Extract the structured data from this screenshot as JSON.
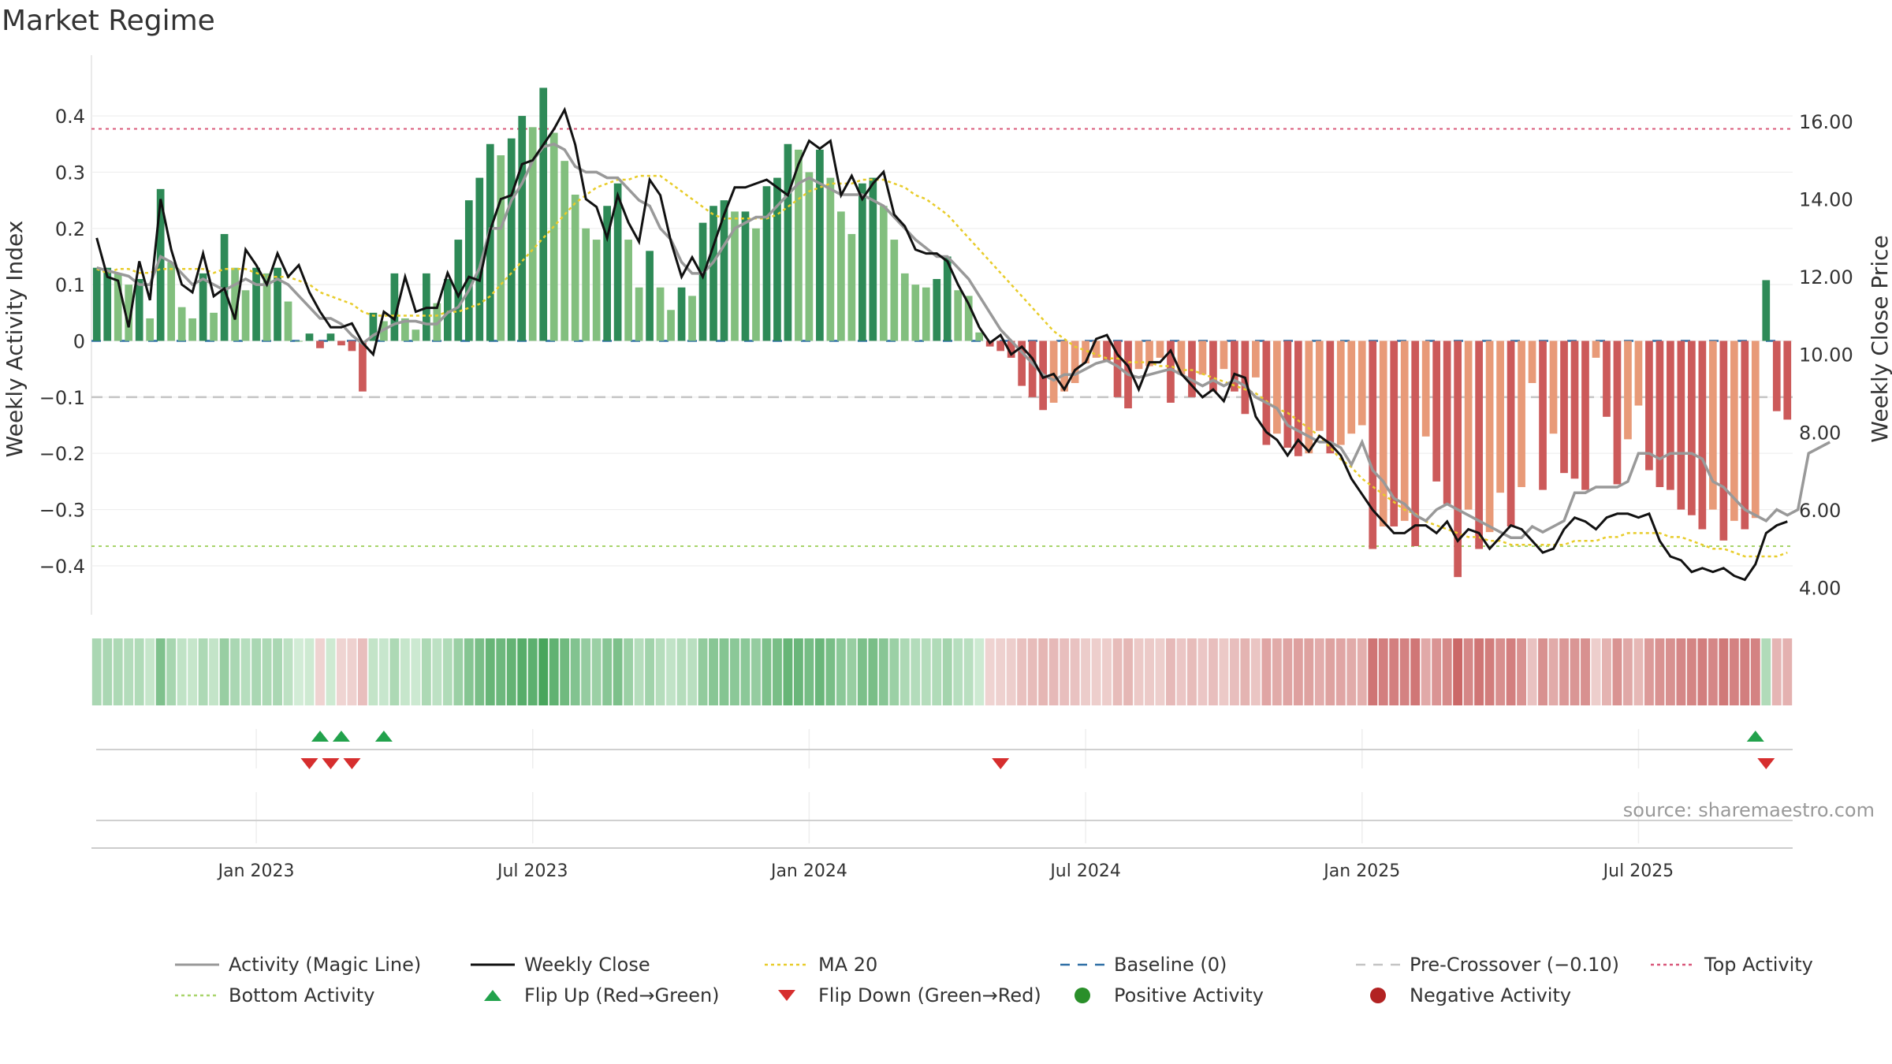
{
  "title": "Market Regime",
  "source": "source: sharemaestro.com",
  "colors": {
    "activity_line": "#999999",
    "close_line": "#111111",
    "ma_line": "#e8cc2a",
    "baseline": "#2f6fa5",
    "precross": "#c4c4c4",
    "top": "#d9587a",
    "bottom": "#a8d46a",
    "flip_up": "#22a24c",
    "flip_down": "#d62e2e",
    "pos_dark": "#2e8a57",
    "pos_light": "#82bf7e",
    "neg_dark": "#cc5a5a",
    "neg_light": "#e89a78",
    "pos_dot": "#2a8f2a",
    "neg_dot": "#b22222"
  },
  "chart_data": {
    "type": "bar",
    "ylabel": "Weekly Activity Index",
    "y2label": "Weekly Close Price",
    "ylim": [
      -0.48,
      0.48
    ],
    "y2lim": [
      3.4,
      17.3
    ],
    "yticks": [
      {
        "v": 0.4,
        "label": "0.4"
      },
      {
        "v": 0.3,
        "label": "0.3"
      },
      {
        "v": 0.2,
        "label": "0.2"
      },
      {
        "v": 0.1,
        "label": "0.1"
      },
      {
        "v": 0,
        "label": "0"
      },
      {
        "v": -0.1,
        "label": "−0.1"
      },
      {
        "v": -0.2,
        "label": "−0.2"
      },
      {
        "v": -0.3,
        "label": "−0.3"
      },
      {
        "v": -0.4,
        "label": "−0.4"
      }
    ],
    "y2ticks": [
      {
        "v": 16,
        "label": "16.00"
      },
      {
        "v": 14,
        "label": "14.00"
      },
      {
        "v": 12,
        "label": "12.00"
      },
      {
        "v": 10,
        "label": "10.00"
      },
      {
        "v": 8,
        "label": "8.00"
      },
      {
        "v": 6,
        "label": "6.00"
      },
      {
        "v": 4,
        "label": "4.00"
      }
    ],
    "xticks": [
      {
        "week": 15,
        "label": "Jan 2023"
      },
      {
        "week": 41,
        "label": "Jul 2023"
      },
      {
        "week": 67,
        "label": "Jan 2024"
      },
      {
        "week": 93,
        "label": "Jul 2024"
      },
      {
        "week": 119,
        "label": "Jan 2025"
      },
      {
        "week": 145,
        "label": "Jul 2025"
      }
    ],
    "reference_lines": {
      "baseline": 0,
      "pre_crossover": -0.1,
      "top_activity": 0.377,
      "bottom_activity": -0.365
    },
    "weekly_activity": [
      0.13,
      0.13,
      0.12,
      0.1,
      0.11,
      0.04,
      0.27,
      0.14,
      0.06,
      0.04,
      0.12,
      0.05,
      0.19,
      0.13,
      0.09,
      0.13,
      0.12,
      0.13,
      0.07,
      0.0,
      0.013,
      -0.013,
      0.013,
      -0.008,
      -0.018,
      -0.09,
      0.05,
      0.035,
      0.12,
      0.04,
      0.02,
      0.12,
      0.067,
      0.11,
      0.18,
      0.25,
      0.29,
      0.35,
      0.33,
      0.36,
      0.4,
      0.38,
      0.45,
      0.37,
      0.32,
      0.26,
      0.2,
      0.18,
      0.24,
      0.28,
      0.18,
      0.095,
      0.16,
      0.095,
      0.055,
      0.095,
      0.08,
      0.21,
      0.24,
      0.25,
      0.23,
      0.23,
      0.2,
      0.275,
      0.29,
      0.35,
      0.34,
      0.3,
      0.34,
      0.29,
      0.23,
      0.19,
      0.28,
      0.29,
      0.24,
      0.18,
      0.12,
      0.1,
      0.095,
      0.11,
      0.15,
      0.09,
      0.08,
      0.015,
      -0.01,
      -0.018,
      -0.03,
      -0.08,
      -0.1,
      -0.123,
      -0.11,
      -0.09,
      -0.075,
      -0.04,
      -0.03,
      -0.035,
      -0.1,
      -0.12,
      -0.05,
      -0.045,
      -0.03,
      -0.11,
      -0.06,
      -0.1,
      -0.06,
      -0.09,
      -0.05,
      -0.09,
      -0.13,
      -0.065,
      -0.185,
      -0.165,
      -0.19,
      -0.205,
      -0.2,
      -0.16,
      -0.2,
      -0.185,
      -0.165,
      -0.15,
      -0.37,
      -0.33,
      -0.33,
      -0.32,
      -0.365,
      -0.17,
      -0.25,
      -0.29,
      -0.42,
      -0.3,
      -0.37,
      -0.34,
      -0.27,
      -0.33,
      -0.26,
      -0.075,
      -0.265,
      -0.165,
      -0.235,
      -0.245,
      -0.265,
      -0.03,
      -0.135,
      -0.255,
      -0.175,
      -0.115,
      -0.23,
      -0.26,
      -0.265,
      -0.3,
      -0.31,
      -0.335,
      -0.3,
      -0.355,
      -0.32,
      -0.335,
      -0.315,
      0.108,
      -0.125,
      -0.14
    ],
    "weekly_close": [
      13.0,
      12.0,
      11.9,
      10.7,
      12.4,
      11.4,
      14.0,
      12.7,
      11.8,
      11.6,
      12.6,
      11.5,
      11.7,
      10.9,
      12.7,
      12.3,
      11.8,
      12.6,
      12.0,
      12.3,
      11.6,
      11.1,
      10.7,
      10.7,
      10.8,
      10.3,
      10.0,
      11.1,
      10.9,
      12.0,
      11.1,
      11.2,
      11.2,
      12.1,
      11.5,
      12.0,
      11.9,
      13.2,
      14.0,
      14.1,
      14.9,
      15.0,
      15.4,
      15.8,
      16.3,
      15.4,
      14.0,
      13.8,
      13.0,
      14.1,
      13.4,
      12.9,
      14.5,
      14.1,
      12.9,
      12.0,
      12.5,
      12.0,
      12.8,
      13.6,
      14.3,
      14.3,
      14.4,
      14.5,
      14.3,
      14.1,
      14.9,
      15.5,
      15.3,
      15.5,
      14.1,
      14.6,
      14.0,
      14.4,
      14.7,
      13.6,
      13.3,
      12.7,
      12.6,
      12.6,
      12.4,
      11.8,
      11.3,
      10.7,
      10.3,
      10.5,
      10.0,
      10.2,
      9.9,
      9.4,
      9.5,
      9.1,
      9.6,
      9.8,
      10.4,
      10.5,
      10.0,
      9.7,
      9.1,
      9.8,
      9.8,
      10.1,
      9.5,
      9.2,
      8.9,
      9.1,
      8.8,
      9.5,
      9.4,
      8.4,
      8.0,
      7.8,
      7.4,
      7.8,
      7.5,
      7.9,
      7.7,
      7.4,
      6.8,
      6.4,
      6.0,
      5.7,
      5.4,
      5.4,
      5.6,
      5.6,
      5.4,
      5.7,
      5.2,
      5.5,
      5.4,
      5.0,
      5.3,
      5.6,
      5.5,
      5.2,
      4.9,
      5.0,
      5.5,
      5.8,
      5.7,
      5.5,
      5.8,
      5.9,
      5.9,
      5.8,
      5.9,
      5.2,
      4.8,
      4.7,
      4.4,
      4.5,
      4.4,
      4.5,
      4.3,
      4.2,
      4.6,
      5.4,
      5.6,
      5.7
    ],
    "ma20": [
      12.2,
      12.1,
      12.2,
      12.2,
      12.1,
      12.1,
      12.2,
      12.2,
      12.2,
      12.2,
      12.2,
      12.1,
      12.2,
      12.2,
      12.2,
      12.1,
      12.0,
      12.0,
      12.0,
      11.9,
      11.8,
      11.6,
      11.5,
      11.4,
      11.3,
      11.1,
      11.0,
      11.0,
      11.0,
      11.0,
      11.0,
      11.0,
      11.0,
      11.1,
      11.1,
      11.2,
      11.3,
      11.5,
      11.8,
      12.1,
      12.4,
      12.7,
      13.0,
      13.3,
      13.6,
      13.9,
      14.1,
      14.3,
      14.4,
      14.5,
      14.5,
      14.6,
      14.6,
      14.6,
      14.4,
      14.2,
      14.0,
      13.8,
      13.6,
      13.5,
      13.5,
      13.5,
      13.5,
      13.5,
      13.6,
      13.8,
      14.0,
      14.2,
      14.3,
      14.4,
      14.4,
      14.4,
      14.5,
      14.5,
      14.5,
      14.4,
      14.3,
      14.1,
      14.0,
      13.8,
      13.6,
      13.3,
      13.0,
      12.7,
      12.4,
      12.1,
      11.8,
      11.5,
      11.2,
      10.9,
      10.6,
      10.4,
      10.2,
      10.1,
      10.0,
      9.9,
      9.9,
      9.8,
      9.8,
      9.8,
      9.7,
      9.7,
      9.6,
      9.6,
      9.5,
      9.4,
      9.3,
      9.2,
      9.1,
      9.0,
      8.8,
      8.6,
      8.5,
      8.3,
      8.1,
      7.9,
      7.6,
      7.3,
      7.1,
      6.8,
      6.6,
      6.4,
      6.2,
      6.0,
      5.9,
      5.7,
      5.6,
      5.5,
      5.4,
      5.3,
      5.3,
      5.2,
      5.2,
      5.1,
      5.1,
      5.1,
      5.1,
      5.1,
      5.1,
      5.2,
      5.2,
      5.2,
      5.3,
      5.3,
      5.4,
      5.4,
      5.4,
      5.4,
      5.3,
      5.3,
      5.2,
      5.1,
      5.0,
      5.0,
      4.9,
      4.8,
      4.8,
      4.8,
      4.8,
      4.9
    ],
    "activity_magic_line": [
      0.13,
      0.125,
      0.12,
      0.115,
      0.1,
      0.1,
      0.15,
      0.14,
      0.12,
      0.1,
      0.11,
      0.1,
      0.09,
      0.1,
      0.11,
      0.1,
      0.1,
      0.11,
      0.1,
      0.08,
      0.06,
      0.04,
      0.04,
      0.03,
      0.01,
      -0.005,
      0.01,
      0.02,
      0.03,
      0.035,
      0.035,
      0.03,
      0.03,
      0.05,
      0.06,
      0.09,
      0.13,
      0.2,
      0.2,
      0.25,
      0.28,
      0.32,
      0.345,
      0.35,
      0.34,
      0.31,
      0.3,
      0.3,
      0.29,
      0.29,
      0.27,
      0.25,
      0.24,
      0.2,
      0.18,
      0.14,
      0.12,
      0.12,
      0.14,
      0.17,
      0.2,
      0.21,
      0.22,
      0.22,
      0.24,
      0.26,
      0.28,
      0.29,
      0.28,
      0.27,
      0.26,
      0.26,
      0.26,
      0.25,
      0.24,
      0.22,
      0.2,
      0.18,
      0.165,
      0.15,
      0.15,
      0.13,
      0.11,
      0.08,
      0.05,
      0.02,
      0.0,
      -0.02,
      -0.04,
      -0.06,
      -0.07,
      -0.06,
      -0.06,
      -0.05,
      -0.04,
      -0.035,
      -0.045,
      -0.06,
      -0.065,
      -0.06,
      -0.055,
      -0.05,
      -0.06,
      -0.07,
      -0.08,
      -0.07,
      -0.08,
      -0.07,
      -0.08,
      -0.1,
      -0.11,
      -0.12,
      -0.15,
      -0.16,
      -0.17,
      -0.18,
      -0.18,
      -0.19,
      -0.22,
      -0.18,
      -0.23,
      -0.25,
      -0.28,
      -0.29,
      -0.31,
      -0.32,
      -0.3,
      -0.29,
      -0.3,
      -0.31,
      -0.32,
      -0.33,
      -0.34,
      -0.35,
      -0.35,
      -0.33,
      -0.34,
      -0.33,
      -0.32,
      -0.27,
      -0.27,
      -0.26,
      -0.26,
      -0.26,
      -0.25,
      -0.2,
      -0.2,
      -0.21,
      -0.2,
      -0.2,
      -0.2,
      -0.21,
      -0.25,
      -0.26,
      -0.28,
      -0.3,
      -0.31,
      -0.32,
      -0.3,
      -0.31,
      -0.3,
      -0.2,
      -0.19,
      -0.18
    ],
    "regime_strip": {
      "note": "weekly regime intensity strip; green = positive, red = negative, shade = magnitude"
    },
    "flip_up_weeks": [
      21,
      23,
      27,
      156
    ],
    "flip_down_weeks": [
      20,
      22,
      24,
      85,
      157
    ],
    "legend": [
      {
        "key": "activity",
        "label": "Activity (Magic Line)",
        "style": "line-grey"
      },
      {
        "key": "close",
        "label": "Weekly Close",
        "style": "line-black"
      },
      {
        "key": "ma20",
        "label": "MA 20",
        "style": "dotted-yellow"
      },
      {
        "key": "baseline",
        "label": "Baseline (0)",
        "style": "dashed-blue"
      },
      {
        "key": "precross",
        "label": "Pre-Crossover (−0.10)",
        "style": "dashed-grey"
      },
      {
        "key": "top",
        "label": "Top Activity",
        "style": "dotted-red"
      },
      {
        "key": "bottom",
        "label": "Bottom Activity",
        "style": "dotted-green"
      },
      {
        "key": "flip_up",
        "label": "Flip Up (Red→Green)",
        "style": "triangle-up"
      },
      {
        "key": "flip_down",
        "label": "Flip Down (Green→Red)",
        "style": "triangle-down"
      },
      {
        "key": "pos",
        "label": "Positive Activity",
        "style": "dot-green"
      },
      {
        "key": "neg",
        "label": "Negative Activity",
        "style": "dot-red"
      }
    ]
  }
}
